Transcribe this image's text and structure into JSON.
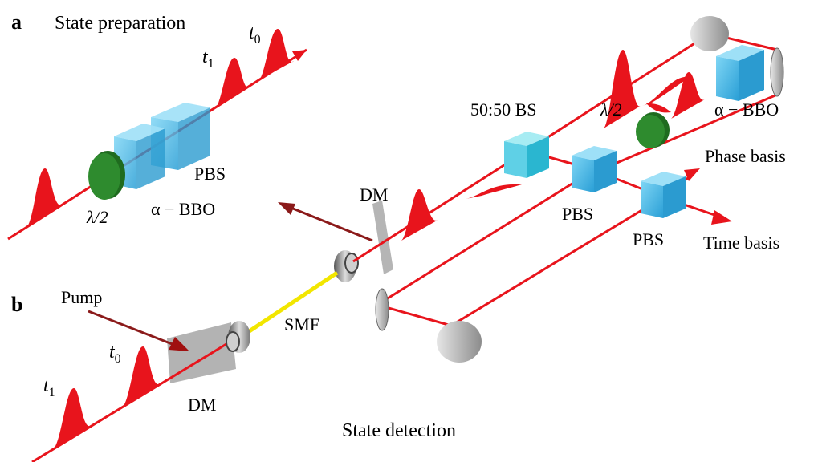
{
  "panels": {
    "a": "a",
    "b": "b"
  },
  "labels": {
    "state_preparation": "State preparation",
    "t0_top": "t",
    "t0_top_sub": "0",
    "t1_top": "t",
    "t1_top_sub": "1",
    "pbs_left": "PBS",
    "abbo_left": "α − BBO",
    "half_wave_left": "λ/2",
    "dm_middle": "DM",
    "bs_5050": "50:50 BS",
    "half_wave_right": "λ/2",
    "abbo_right": "α − BBO",
    "phase_basis": "Phase basis",
    "pbs_right1": "PBS",
    "pbs_right2": "PBS",
    "time_basis": "Time basis",
    "pump": "Pump",
    "t0_bottom": "t",
    "t0_bottom_sub": "0",
    "t1_bottom": "t",
    "t1_bottom_sub": "1",
    "smf": "SMF",
    "dm_bottom": "DM",
    "state_detection": "State detection"
  },
  "colors": {
    "beam": "#e8141c",
    "pulse": "#e8141c",
    "cube": "#39b6e8",
    "waveplate": "#2e8b2e",
    "fiber": "#f2e600",
    "mirror": "#b8b8b8",
    "dichroic": "#9a9a9a",
    "pump": "#8b1a1a"
  }
}
